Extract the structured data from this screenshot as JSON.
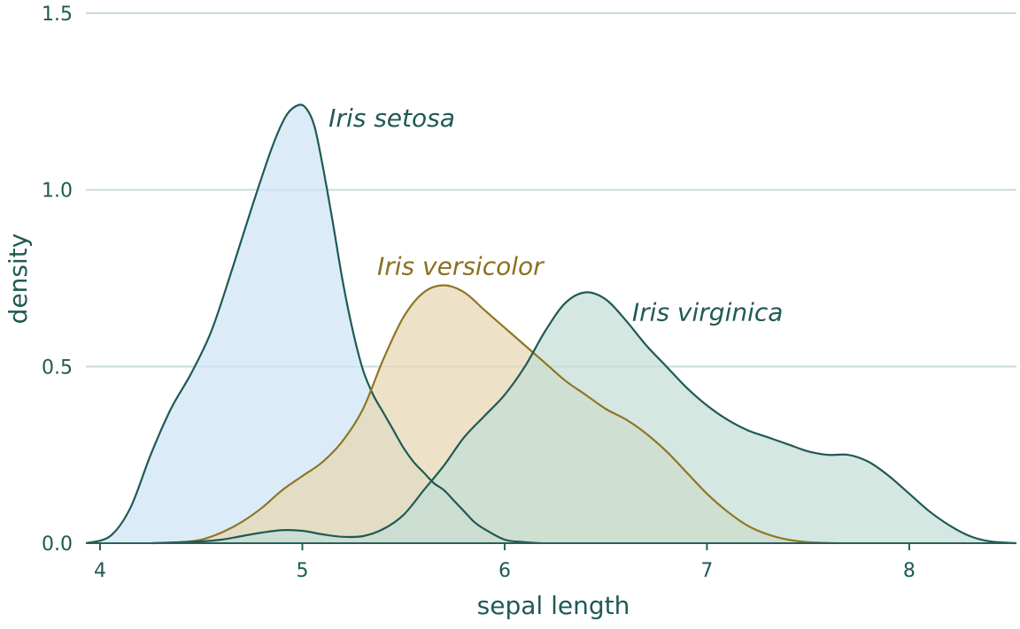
{
  "chart_data": {
    "type": "area",
    "title": "",
    "xlabel": "sepal length",
    "ylabel": "density",
    "xlim": [
      3.93,
      8.53
    ],
    "ylim": [
      0,
      1.5
    ],
    "x_ticks": [
      4,
      5,
      6,
      7,
      8
    ],
    "y_ticks": [
      0.0,
      0.5,
      1.0,
      1.5
    ],
    "y_tick_labels": [
      "0.0",
      "0.5",
      "1.0",
      "1.5"
    ],
    "grid": "horizontal",
    "legend": "none (direct labels)",
    "series": [
      {
        "name": "Iris setosa",
        "fill": "#cde5f5",
        "stroke": "#1f5a55",
        "label_color": "#1f5a55",
        "label_at": [
          5.13,
          1.18
        ],
        "x": [
          3.93,
          4.05,
          4.15,
          4.25,
          4.35,
          4.45,
          4.55,
          4.65,
          4.75,
          4.85,
          4.92,
          4.98,
          5.02,
          5.06,
          5.1,
          5.15,
          5.2,
          5.25,
          5.3,
          5.35,
          5.4,
          5.45,
          5.5,
          5.55,
          5.6,
          5.65,
          5.7,
          5.75,
          5.8,
          5.85,
          5.9,
          6.0,
          6.1,
          6.18
        ],
        "y": [
          0.0,
          0.02,
          0.1,
          0.25,
          0.38,
          0.48,
          0.6,
          0.77,
          0.95,
          1.12,
          1.21,
          1.24,
          1.23,
          1.18,
          1.07,
          0.91,
          0.74,
          0.6,
          0.49,
          0.42,
          0.37,
          0.32,
          0.27,
          0.23,
          0.2,
          0.17,
          0.15,
          0.12,
          0.09,
          0.06,
          0.04,
          0.01,
          0.003,
          0.0
        ]
      },
      {
        "name": "Iris versicolor",
        "fill": "#e6d7b1",
        "stroke": "#8f7625",
        "label_color": "#8a7020",
        "label_at": [
          5.37,
          0.76
        ],
        "x": [
          4.26,
          4.4,
          4.5,
          4.6,
          4.7,
          4.8,
          4.9,
          5.0,
          5.1,
          5.2,
          5.3,
          5.4,
          5.5,
          5.6,
          5.7,
          5.8,
          5.9,
          6.0,
          6.1,
          6.2,
          6.3,
          6.4,
          6.5,
          6.6,
          6.7,
          6.8,
          6.9,
          7.0,
          7.1,
          7.2,
          7.3,
          7.4,
          7.5,
          7.64
        ],
        "y": [
          0.0,
          0.003,
          0.01,
          0.03,
          0.06,
          0.1,
          0.15,
          0.19,
          0.23,
          0.29,
          0.38,
          0.52,
          0.64,
          0.71,
          0.73,
          0.71,
          0.66,
          0.61,
          0.56,
          0.51,
          0.46,
          0.42,
          0.38,
          0.35,
          0.31,
          0.26,
          0.2,
          0.14,
          0.09,
          0.05,
          0.025,
          0.01,
          0.003,
          0.0
        ]
      },
      {
        "name": "Iris virginica",
        "fill": "#c3ded6",
        "stroke": "#1f5a55",
        "label_color": "#1f5a55",
        "label_at": [
          6.63,
          0.63
        ],
        "x": [
          4.26,
          4.4,
          4.5,
          4.6,
          4.7,
          4.8,
          4.9,
          5.0,
          5.1,
          5.2,
          5.3,
          5.4,
          5.5,
          5.6,
          5.7,
          5.8,
          5.9,
          6.0,
          6.1,
          6.2,
          6.3,
          6.4,
          6.5,
          6.6,
          6.7,
          6.8,
          6.9,
          7.0,
          7.1,
          7.2,
          7.3,
          7.4,
          7.5,
          7.6,
          7.7,
          7.8,
          7.9,
          8.0,
          8.1,
          8.2,
          8.3,
          8.4,
          8.53
        ],
        "y": [
          0.0,
          0.003,
          0.005,
          0.01,
          0.02,
          0.03,
          0.037,
          0.035,
          0.025,
          0.018,
          0.02,
          0.04,
          0.08,
          0.15,
          0.22,
          0.3,
          0.36,
          0.42,
          0.5,
          0.6,
          0.68,
          0.71,
          0.69,
          0.63,
          0.56,
          0.5,
          0.44,
          0.39,
          0.35,
          0.32,
          0.3,
          0.28,
          0.26,
          0.25,
          0.25,
          0.23,
          0.19,
          0.14,
          0.09,
          0.05,
          0.02,
          0.005,
          0.0
        ]
      }
    ]
  }
}
